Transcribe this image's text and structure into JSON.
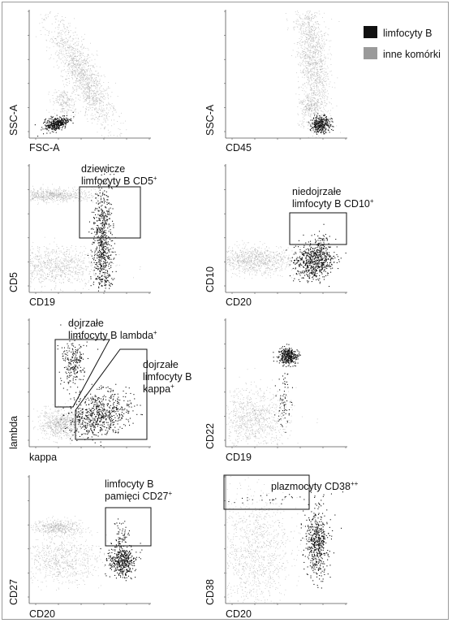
{
  "legend": [
    {
      "label": "limfocyty B",
      "color": "#111111"
    },
    {
      "label": "inne komórki",
      "color": "#9a9a9a"
    }
  ],
  "chart_data": [
    {
      "type": "scatter",
      "xlabel": "FSC-A",
      "ylabel": "SSC-A",
      "series": [
        {
          "name": "limfocyty B",
          "color": "#111111"
        },
        {
          "name": "inne komórki",
          "color": "#9a9a9a"
        }
      ],
      "gates": []
    },
    {
      "type": "scatter",
      "xlabel": "CD45",
      "ylabel": "SSC-A",
      "series": [
        {
          "name": "limfocyty B",
          "color": "#111111"
        },
        {
          "name": "inne komórki",
          "color": "#9a9a9a"
        }
      ],
      "gates": []
    },
    {
      "type": "scatter",
      "xlabel": "CD19",
      "ylabel": "CD5",
      "series": [
        {
          "name": "limfocyty B",
          "color": "#111111"
        },
        {
          "name": "inne komórki",
          "color": "#9a9a9a"
        }
      ],
      "gates": [
        {
          "label_line1": "dziewicze",
          "label_line2": "limfocyty B CD5",
          "label_sup": "+"
        }
      ]
    },
    {
      "type": "scatter",
      "xlabel": "CD20",
      "ylabel": "CD10",
      "series": [
        {
          "name": "limfocyty B",
          "color": "#111111"
        },
        {
          "name": "inne komórki",
          "color": "#9a9a9a"
        }
      ],
      "gates": [
        {
          "label_line1": "niedojrzałe",
          "label_line2": "limfocyty B CD10",
          "label_sup": "+"
        }
      ]
    },
    {
      "type": "scatter",
      "xlabel": "kappa",
      "ylabel": "lambda",
      "series": [
        {
          "name": "limfocyty B",
          "color": "#111111"
        },
        {
          "name": "inne komórki",
          "color": "#9a9a9a"
        }
      ],
      "gates": [
        {
          "label_line1": "dojrzałe",
          "label_line2": "limfocyty B lambda",
          "label_sup": "+"
        },
        {
          "label_line1": "dojrzałe",
          "label_line2": "limfocyty B",
          "label_line3": "kappa",
          "label_sup": "+"
        }
      ]
    },
    {
      "type": "scatter",
      "xlabel": "CD19",
      "ylabel": "CD22",
      "series": [
        {
          "name": "limfocyty B",
          "color": "#111111"
        },
        {
          "name": "inne komórki",
          "color": "#9a9a9a"
        }
      ],
      "gates": []
    },
    {
      "type": "scatter",
      "xlabel": "CD20",
      "ylabel": "CD27",
      "series": [
        {
          "name": "limfocyty B",
          "color": "#111111"
        },
        {
          "name": "inne komórki",
          "color": "#9a9a9a"
        }
      ],
      "gates": [
        {
          "label_line1": "limfocyty B",
          "label_line2": "pamięci CD27",
          "label_sup": "+"
        }
      ]
    },
    {
      "type": "scatter",
      "xlabel": "CD20",
      "ylabel": "CD38",
      "series": [
        {
          "name": "limfocyty B",
          "color": "#111111"
        },
        {
          "name": "inne komórki",
          "color": "#9a9a9a"
        }
      ],
      "gates": [
        {
          "label_line1": "plazmocyty CD38",
          "label_sup": "++"
        }
      ]
    }
  ]
}
